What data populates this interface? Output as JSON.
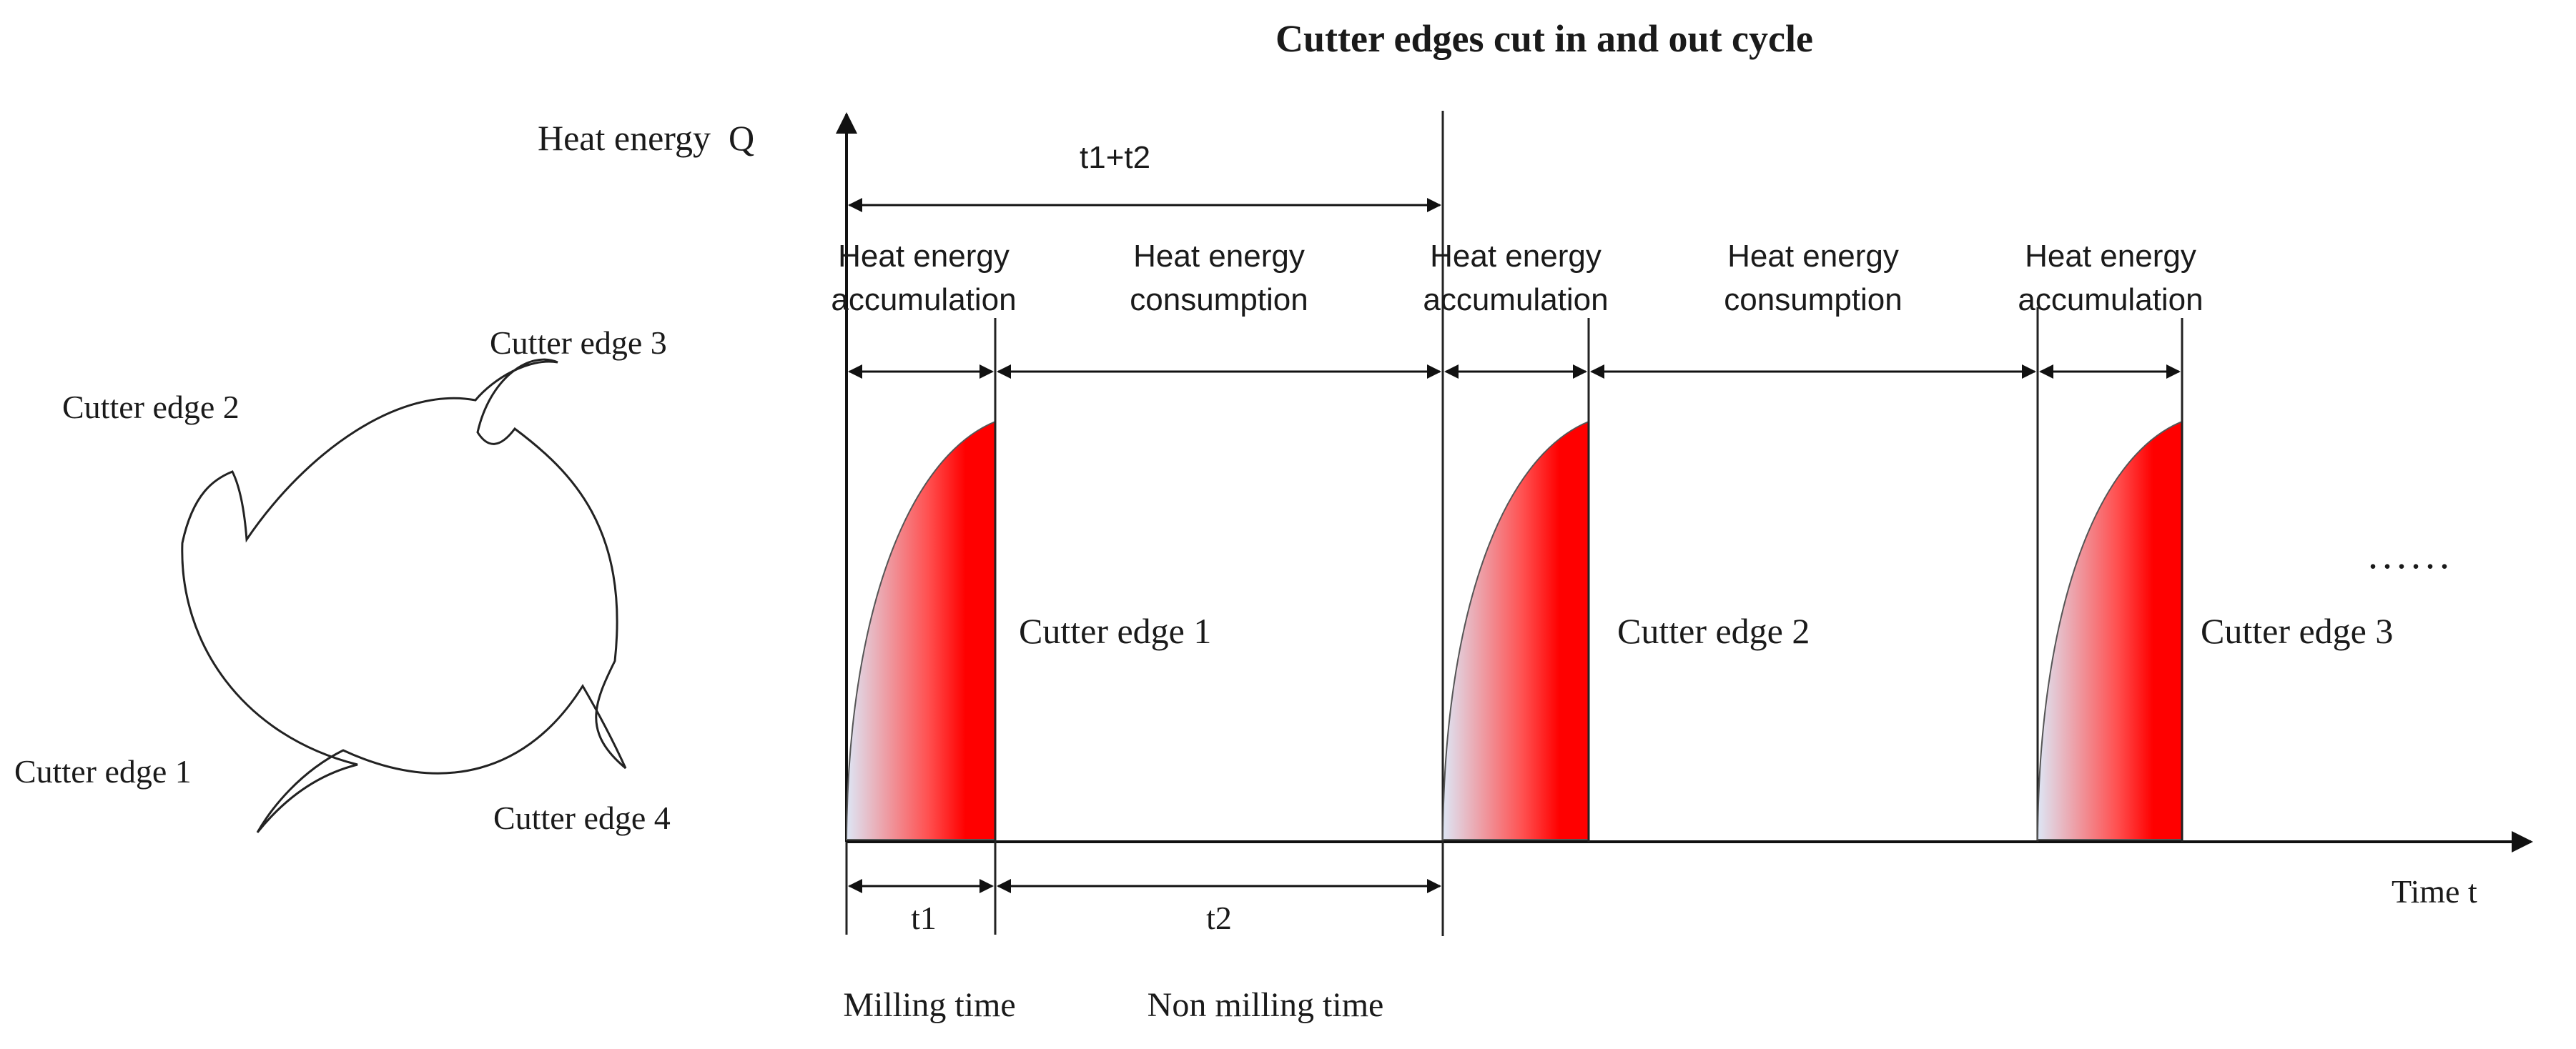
{
  "title": "Cutter edges cut in and out cycle",
  "y_axis_label": "Heat energy  Q",
  "x_axis_label": "Time t",
  "cycle_label": "t1+t2",
  "ellipsis": "......",
  "phase_labels": {
    "accumulation": [
      "Heat energy",
      "accumulation"
    ],
    "consumption": [
      "Heat energy",
      "consumption"
    ]
  },
  "pulse_labels": [
    "Cutter edge 1",
    "Cutter edge 2",
    "Cutter edge 3"
  ],
  "cutter_labels": {
    "edge1": "Cutter edge 1",
    "edge2": "Cutter edge 2",
    "edge3": "Cutter edge 3",
    "edge4": "Cutter edge 4"
  },
  "time_labels": {
    "t1": "t1",
    "t2": "t2",
    "milling": "Milling time",
    "non_milling": "Non milling time"
  },
  "colors": {
    "pulse_red": "#ff0000",
    "pulse_light": "#dde6f5",
    "lines": "#222222"
  }
}
